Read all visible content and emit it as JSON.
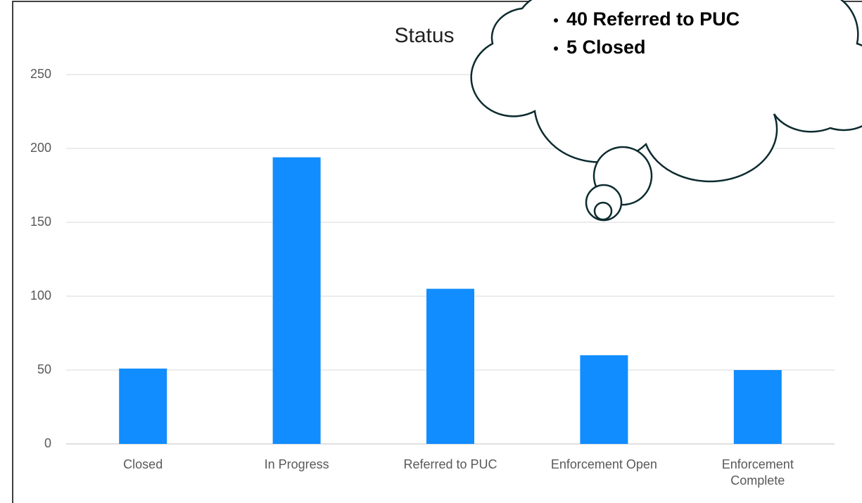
{
  "chart_data": {
    "type": "bar",
    "title": "Status",
    "categories": [
      "Closed",
      "In Progress",
      "Referred to PUC",
      "Enforcement Open",
      "Enforcement Complete"
    ],
    "values": [
      51,
      194,
      105,
      60,
      50
    ],
    "color": "#118dff",
    "ylim": [
      0,
      250
    ],
    "yticks": [
      0,
      50,
      100,
      150,
      200,
      250
    ],
    "grid": true,
    "callout": [
      "40 Referred to PUC",
      "5 Closed"
    ]
  }
}
